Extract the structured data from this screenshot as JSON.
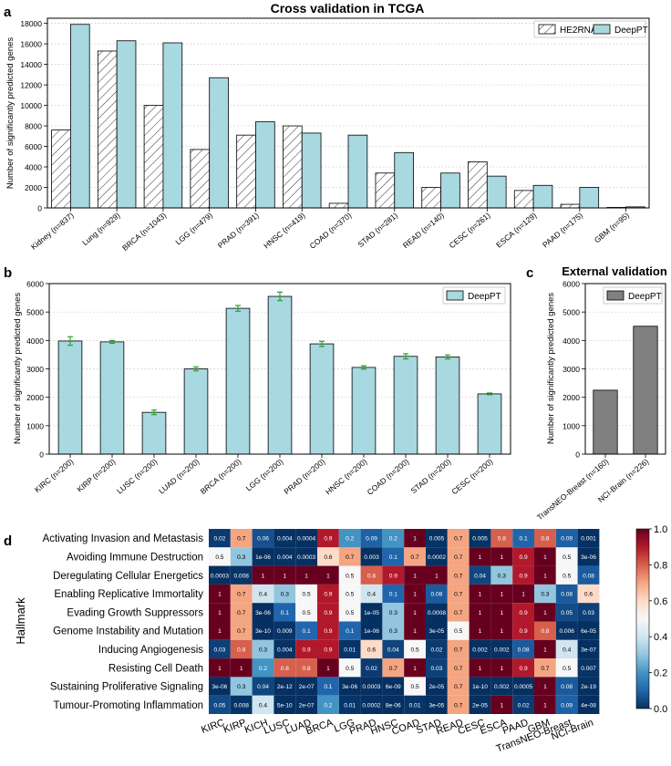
{
  "panel_letters": {
    "a": "a",
    "b": "b",
    "c": "c",
    "d": "d"
  },
  "colors": {
    "deeppt": "#a8d8e0",
    "he2rna_hatch": "#ffffff",
    "external": "#808080",
    "errorbar": "#2ca02c",
    "heat_low": "#053061",
    "heat_mid": "#f7f7f7",
    "heat_high": "#67001f"
  },
  "chart_data": [
    {
      "id": "a",
      "type": "bar",
      "title": "Cross validation in TCGA",
      "xlabel": "",
      "ylabel": "Number of significantly predicted genes",
      "ylim": [
        0,
        18500
      ],
      "yticks": [
        0,
        2000,
        4000,
        6000,
        8000,
        10000,
        12000,
        14000,
        16000,
        18000
      ],
      "grid": true,
      "legend_position": "top-right",
      "categories": [
        "Kidney (n=837)",
        "Lung (n=929)",
        "BRCA (n=1043)",
        "LGG (n=479)",
        "PRAD (n=391)",
        "HNSC (n=419)",
        "COAD (n=370)",
        "STAD (n=281)",
        "READ (n=140)",
        "CESC (n=261)",
        "ESCA (n=129)",
        "PAAD (n=175)",
        "GBM (n=95)"
      ],
      "series": [
        {
          "name": "HE2RNA",
          "style": "hatch",
          "values": [
            7600,
            15300,
            10000,
            5700,
            7100,
            8000,
            450,
            3400,
            2000,
            4500,
            1700,
            350,
            50
          ]
        },
        {
          "name": "DeepPT",
          "style": "fill",
          "values": [
            17900,
            16300,
            16100,
            12700,
            8400,
            7300,
            7100,
            5400,
            3400,
            3100,
            2200,
            2000,
            100
          ]
        }
      ]
    },
    {
      "id": "b",
      "type": "bar",
      "title": "",
      "xlabel": "",
      "ylabel": "Number of significantly predicted genes",
      "ylim": [
        0,
        6000
      ],
      "yticks": [
        0,
        1000,
        2000,
        3000,
        4000,
        5000,
        6000
      ],
      "grid": true,
      "legend_position": "top-right",
      "categories": [
        "KIRC (n=200)",
        "KIRP (n=200)",
        "LUSC (n=200)",
        "LUAD (n=200)",
        "BRCA (n=200)",
        "LGG (n=200)",
        "PRAD (n=200)",
        "HNSC (n=200)",
        "COAD (n=200)",
        "STAD (n=200)",
        "CESC (n=200)"
      ],
      "series": [
        {
          "name": "DeepPT",
          "values": [
            3980,
            3950,
            1470,
            3000,
            5130,
            5550,
            3880,
            3050,
            3440,
            3420,
            2120
          ],
          "errors": [
            150,
            50,
            80,
            70,
            100,
            150,
            90,
            60,
            90,
            70,
            30
          ]
        }
      ]
    },
    {
      "id": "c",
      "type": "bar",
      "title": "External validation",
      "xlabel": "",
      "ylabel": "Number of significantly predicted genes",
      "ylim": [
        0,
        6000
      ],
      "yticks": [
        0,
        1000,
        2000,
        3000,
        4000,
        5000,
        6000
      ],
      "grid": true,
      "legend_position": "top-right",
      "categories": [
        "TransNEO-Breast (n=160)",
        "NCI-Brain (n=226)"
      ],
      "series": [
        {
          "name": "DeepPT",
          "values": [
            2250,
            4500
          ]
        }
      ]
    },
    {
      "id": "d",
      "type": "heatmap",
      "title": "",
      "ylabel": "Hallmark",
      "columns": [
        "KIRC",
        "KIRP",
        "KICH",
        "LUSC",
        "LUAD",
        "BRCA",
        "LGG",
        "PRAD",
        "HNSC",
        "COAD",
        "STAD",
        "READ",
        "CESC",
        "ESCA",
        "PAAD",
        "GBM",
        "TransNEO-Breast",
        "NCI-Brain"
      ],
      "rows": [
        "Activating Invasion and Metastasis",
        "Avoiding Immune Destruction",
        "Deregulating Cellular Energetics",
        "Enabling Replicative Immortality",
        "Evading Growth Suppressors",
        "Genome Instability and Mutation",
        "Inducing Angiogenesis",
        "Resisting Cell Death",
        "Sustaining Proliferative Signaling",
        "Tumour-Promoting Inflammation"
      ],
      "values": [
        [
          0.02,
          0.7,
          0.06,
          0.004,
          0.0004,
          0.9,
          0.2,
          0.09,
          0.2,
          1,
          0.005,
          0.7,
          0.005,
          0.8,
          0.1,
          0.8,
          0.09,
          0.001
        ],
        [
          0.5,
          0.3,
          1e-06,
          0.004,
          0.0003,
          0.6,
          0.7,
          0.003,
          0.1,
          0.7,
          0.0002,
          0.7,
          1,
          1,
          0.9,
          1,
          0.5,
          3e-06
        ],
        [
          0.0003,
          0.008,
          1,
          1,
          1,
          1,
          0.5,
          0.8,
          0.9,
          1,
          1,
          0.7,
          0.04,
          0.3,
          0.9,
          1,
          0.5,
          0.08
        ],
        [
          1,
          0.7,
          0.4,
          0.3,
          0.5,
          0.9,
          0.5,
          0.4,
          0.1,
          1,
          0.08,
          0.7,
          1,
          1,
          1,
          0.3,
          0.08,
          0.6
        ],
        [
          1,
          0.7,
          3e-06,
          0.1,
          0.5,
          0.9,
          0.5,
          1e-05,
          0.3,
          1,
          0.0008,
          0.7,
          1,
          1,
          0.9,
          1,
          0.05,
          0.03
        ],
        [
          1,
          0.7,
          3e-10,
          0.009,
          0.1,
          0.9,
          0.1,
          1e-06,
          0.3,
          1,
          3e-05,
          0.5,
          1,
          1,
          0.9,
          0.8,
          0.006,
          6e-05
        ],
        [
          0.03,
          0.8,
          0.3,
          0.004,
          0.9,
          0.9,
          0.01,
          0.6,
          0.04,
          0.5,
          0.02,
          0.7,
          0.002,
          0.002,
          0.08,
          1,
          0.4,
          3e-07
        ],
        [
          1,
          1,
          0.2,
          0.8,
          0.8,
          1,
          0.5,
          0.02,
          0.7,
          1,
          0.03,
          0.7,
          1,
          1,
          0.9,
          0.7,
          0.5,
          0.007
        ],
        [
          3e-06,
          0.3,
          0.04,
          2e-12,
          2e-07,
          0.1,
          3e-06,
          0.0003,
          6e-09,
          0.5,
          2e-05,
          0.7,
          1e-10,
          0.002,
          0.0005,
          1,
          0.08,
          2e-19
        ],
        [
          0.05,
          0.008,
          0.4,
          5e-10,
          2e-07,
          0.2,
          0.01,
          0.0002,
          8e-06,
          0.01,
          3e-05,
          0.7,
          2e-05,
          1,
          0.02,
          1,
          0.09,
          4e-08
        ]
      ],
      "labels": [
        [
          "0.02",
          "0.7",
          "0.06",
          "0.004",
          "0.0004",
          "0.9",
          "0.2",
          "0.09",
          "0.2",
          "1",
          "0.005",
          "0.7",
          "0.005",
          "0.8",
          "0.1",
          "0.8",
          "0.09",
          "0.001"
        ],
        [
          "0.5",
          "0.3",
          "1e-06",
          "0.004",
          "0.0003",
          "0.6",
          "0.7",
          "0.003",
          "0.1",
          "0.7",
          "0.0002",
          "0.7",
          "1",
          "1",
          "0.9",
          "1",
          "0.5",
          "3e-06"
        ],
        [
          "0.0003",
          "0.008",
          "1",
          "1",
          "1",
          "1",
          "0.5",
          "0.8",
          "0.9",
          "1",
          "1",
          "0.7",
          "0.04",
          "0.3",
          "0.9",
          "1",
          "0.5",
          "0.08"
        ],
        [
          "1",
          "0.7",
          "0.4",
          "0.3",
          "0.5",
          "0.9",
          "0.5",
          "0.4",
          "0.1",
          "1",
          "0.08",
          "0.7",
          "1",
          "1",
          "1",
          "0.3",
          "0.08",
          "0.6"
        ],
        [
          "1",
          "0.7",
          "3e-06",
          "0.1",
          "0.5",
          "0.9",
          "0.5",
          "1e-05",
          "0.3",
          "1",
          "0.0008",
          "0.7",
          "1",
          "1",
          "0.9",
          "1",
          "0.05",
          "0.03"
        ],
        [
          "1",
          "0.7",
          "3e-10",
          "0.009",
          "0.1",
          "0.9",
          "0.1",
          "1e-06",
          "0.3",
          "1",
          "3e-05",
          "0.5",
          "1",
          "1",
          "0.9",
          "0.8",
          "0.006",
          "6e-05"
        ],
        [
          "0.03",
          "0.8",
          "0.3",
          "0.004",
          "0.9",
          "0.9",
          "0.01",
          "0.6",
          "0.04",
          "0.5",
          "0.02",
          "0.7",
          "0.002",
          "0.002",
          "0.08",
          "1",
          "0.4",
          "3e-07"
        ],
        [
          "1",
          "1",
          "0.2",
          "0.8",
          "0.8",
          "1",
          "0.5",
          "0.02",
          "0.7",
          "1",
          "0.03",
          "0.7",
          "1",
          "1",
          "0.9",
          "0.7",
          "0.5",
          "0.007"
        ],
        [
          "3e-06",
          "0.3",
          "0.04",
          "2e-12",
          "2e-07",
          "0.1",
          "3e-06",
          "0.0003",
          "6e-09",
          "0.5",
          "2e-05",
          "0.7",
          "1e-10",
          "0.002",
          "0.0005",
          "1",
          "0.08",
          "2e-19"
        ],
        [
          "0.05",
          "0.008",
          "0.4",
          "5e-10",
          "2e-07",
          "0.2",
          "0.01",
          "0.0002",
          "8e-06",
          "0.01",
          "3e-05",
          "0.7",
          "2e-05",
          "1",
          "0.02",
          "1",
          "0.09",
          "4e-08"
        ]
      ],
      "colorbar": {
        "range": [
          0,
          1
        ],
        "ticks": [
          "0.0",
          "0.2",
          "0.4",
          "0.6",
          "0.8",
          "1.0"
        ],
        "colormap": "RdBu_r"
      }
    }
  ]
}
